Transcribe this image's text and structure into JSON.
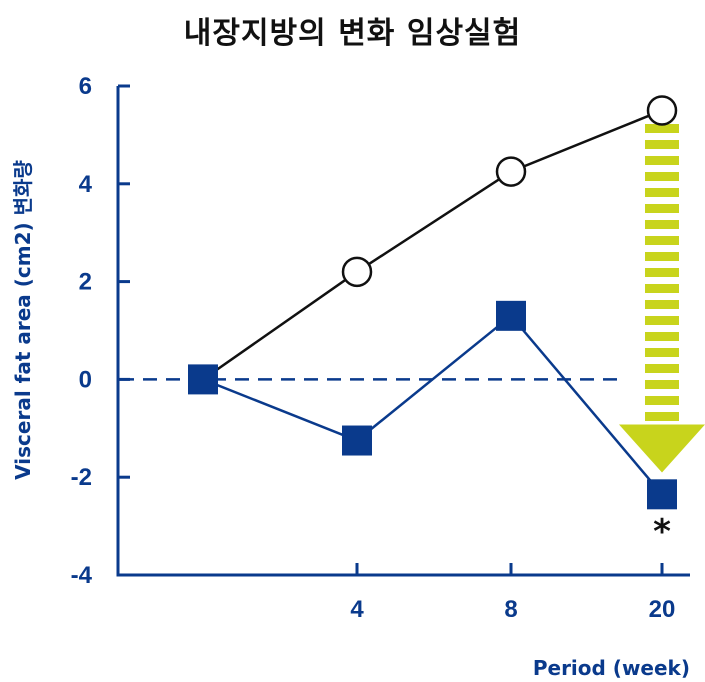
{
  "title": "내장지방의 변화 임상실험",
  "chart_data": {
    "type": "line",
    "title": "내장지방의 변화 임상실험",
    "xlabel": "Period (week)",
    "ylabel": "Visceral fat area (cm2) 변화량",
    "categories": [
      "0",
      "4",
      "8",
      "20"
    ],
    "x_tick_labels": [
      "4",
      "8",
      "20"
    ],
    "y_ticks": [
      6,
      4,
      2,
      0,
      -2,
      -4
    ],
    "ylim": [
      -4,
      6
    ],
    "series": [
      {
        "values": [
          0,
          2.2,
          4.25,
          5.5
        ],
        "marker": "open-circle",
        "color": "#111111"
      },
      {
        "values": [
          0,
          -1.25,
          1.3,
          -2.35
        ],
        "marker": "filled-square",
        "color": "#0a3a8c"
      }
    ],
    "reference_line": {
      "y": 0,
      "style": "dashed",
      "color": "#0a3a8c"
    },
    "annotations": [
      {
        "text": "*",
        "category": "20"
      }
    ],
    "arrow": {
      "category": "20",
      "from": 5.1,
      "to": -1.7,
      "color": "#c8d41c"
    },
    "axis_color": "#0a3a8c",
    "grid": false
  }
}
